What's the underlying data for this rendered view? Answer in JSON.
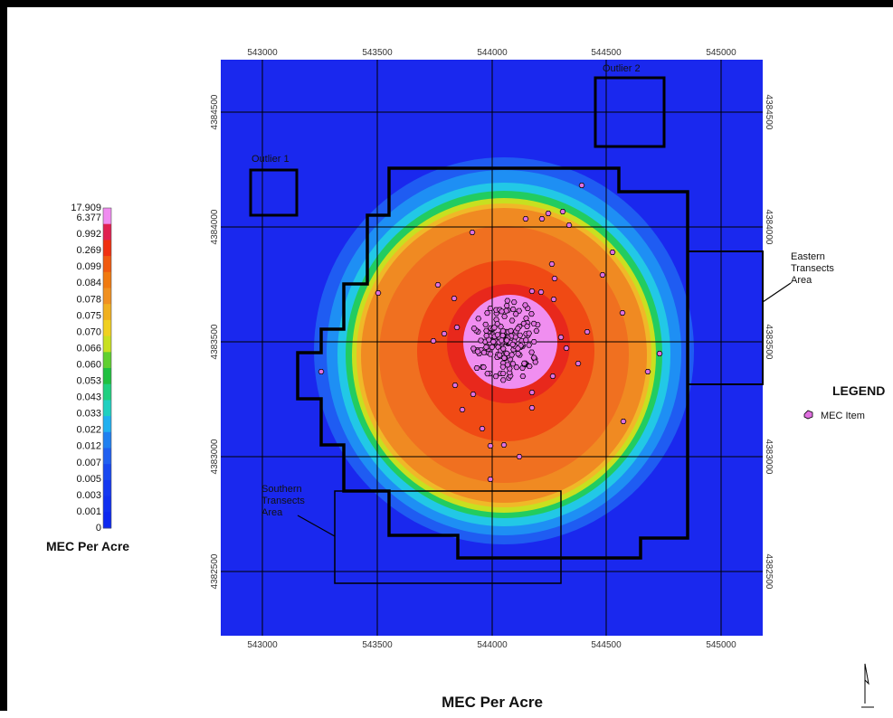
{
  "map": {
    "title": "MEC Per Acre",
    "easting_ticks": [
      "543000",
      "543500",
      "544000",
      "544500",
      "545000"
    ],
    "northing_ticks": [
      "4384500",
      "4384000",
      "4383500",
      "4383000",
      "4382500"
    ],
    "labels": {
      "outlier1": "Outlier 1",
      "outlier2": "Outlier 2",
      "eastern": [
        "Eastern",
        "Transects",
        "Area"
      ],
      "southern": [
        "Southern",
        "Transects",
        "Area"
      ]
    }
  },
  "colorbar": {
    "title": "MEC Per Acre",
    "values": [
      "17.909",
      "6.377",
      "0.992",
      "0.269",
      "0.099",
      "0.084",
      "0.078",
      "0.075",
      "0.070",
      "0.066",
      "0.060",
      "0.053",
      "0.043",
      "0.033",
      "0.022",
      "0.012",
      "0.007",
      "0.005",
      "0.003",
      "0.001",
      "0"
    ],
    "colors": [
      "#f08cf0",
      "#e02050",
      "#f03010",
      "#f05a10",
      "#f07a10",
      "#f09020",
      "#f0b020",
      "#f0d020",
      "#c8e020",
      "#60d030",
      "#20c040",
      "#20d080",
      "#20d0c0",
      "#20b0f0",
      "#2080f0",
      "#2060f0",
      "#1848f0",
      "#1438f0",
      "#1030f0",
      "#0c28f0"
    ]
  },
  "legend": {
    "title": "LEGEND",
    "item": "MEC Item",
    "item_color": "#e070e0"
  }
}
